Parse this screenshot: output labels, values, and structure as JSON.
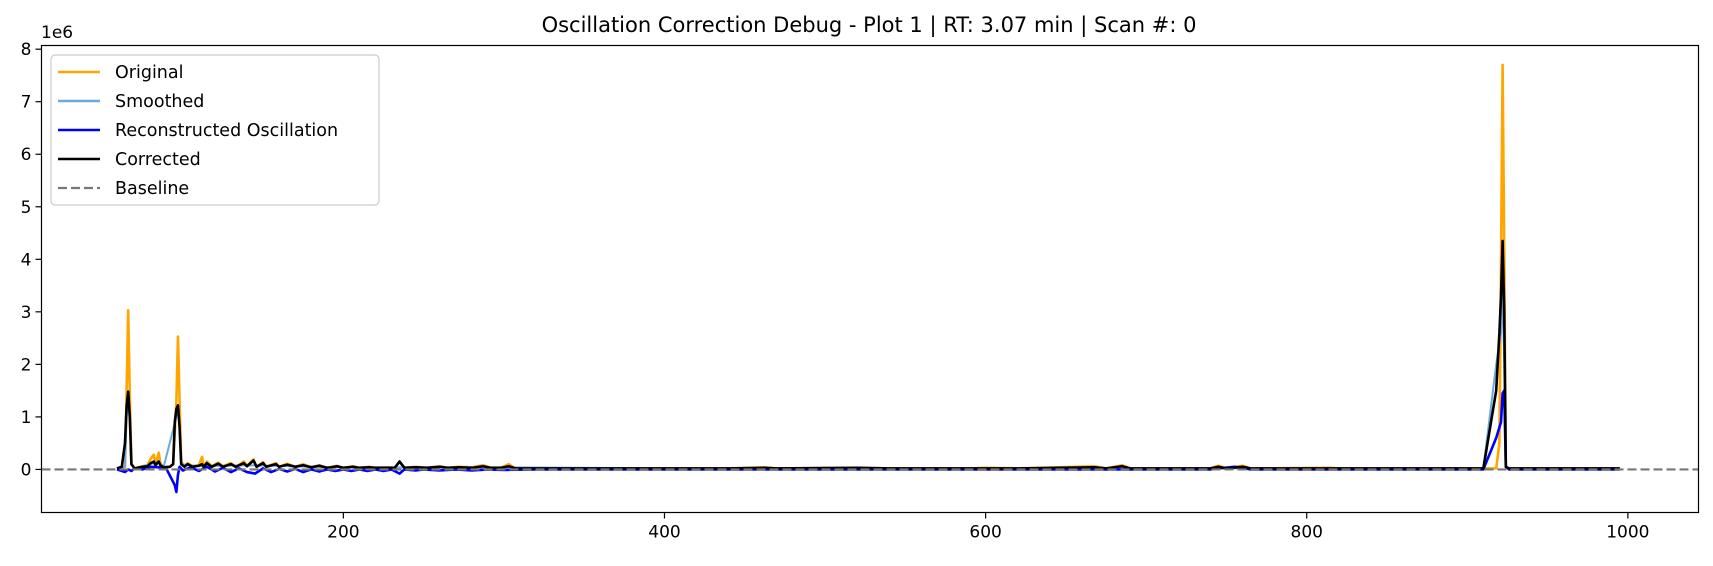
{
  "chart_data": {
    "type": "line",
    "title": "Oscillation Correction Debug - Plot 1 | RT: 3.07 min | Scan #: 0",
    "xlabel": "",
    "ylabel": "",
    "y_offset_label": "1e6",
    "xlim": [
      12,
      1044
    ],
    "ylim": [
      -0.82,
      8.07
    ],
    "x_ticks": [
      200,
      400,
      600,
      800,
      1000
    ],
    "x_tick_labels": [
      "200",
      "400",
      "600",
      "800",
      "1000"
    ],
    "y_ticks": [
      0,
      1,
      2,
      3,
      4,
      5,
      6,
      7,
      8
    ],
    "y_tick_labels": [
      "0",
      "1",
      "2",
      "3",
      "4",
      "5",
      "6",
      "7",
      "8"
    ],
    "grid": false,
    "legend_position": "top-left",
    "baseline": 0,
    "series": [
      {
        "name": "Original",
        "color": "#ffa500",
        "points": [
          [
            59,
            0.02
          ],
          [
            64,
            0.05
          ],
          [
            65,
            1.5
          ],
          [
            66,
            3.03
          ],
          [
            67,
            1.4
          ],
          [
            68,
            0.1
          ],
          [
            70,
            0.02
          ],
          [
            75,
            0.06
          ],
          [
            78,
            0.08
          ],
          [
            80,
            0.2
          ],
          [
            82,
            0.28
          ],
          [
            83,
            0.1
          ],
          [
            85,
            0.32
          ],
          [
            86,
            0.12
          ],
          [
            88,
            0.04
          ],
          [
            92,
            0.05
          ],
          [
            94,
            0.1
          ],
          [
            96,
            1.3
          ],
          [
            97,
            2.53
          ],
          [
            98,
            1.3
          ],
          [
            99,
            0.15
          ],
          [
            101,
            0.05
          ],
          [
            103,
            0.12
          ],
          [
            106,
            0.06
          ],
          [
            110,
            0.08
          ],
          [
            112,
            0.24
          ],
          [
            113,
            0.05
          ],
          [
            115,
            0.15
          ],
          [
            118,
            0.06
          ],
          [
            122,
            0.13
          ],
          [
            125,
            0.06
          ],
          [
            130,
            0.12
          ],
          [
            133,
            0.05
          ],
          [
            138,
            0.15
          ],
          [
            140,
            0.07
          ],
          [
            144,
            0.19
          ],
          [
            146,
            0.05
          ],
          [
            150,
            0.14
          ],
          [
            152,
            0.05
          ],
          [
            158,
            0.12
          ],
          [
            160,
            0.05
          ],
          [
            165,
            0.11
          ],
          [
            170,
            0.05
          ],
          [
            175,
            0.1
          ],
          [
            180,
            0.04
          ],
          [
            185,
            0.08
          ],
          [
            190,
            0.03
          ],
          [
            196,
            0.07
          ],
          [
            200,
            0.03
          ],
          [
            206,
            0.06
          ],
          [
            210,
            0.03
          ],
          [
            216,
            0.05
          ],
          [
            220,
            0.03
          ],
          [
            226,
            0.04
          ],
          [
            232,
            0.03
          ],
          [
            235,
            0.15
          ],
          [
            238,
            0.03
          ],
          [
            245,
            0.05
          ],
          [
            252,
            0.03
          ],
          [
            260,
            0.06
          ],
          [
            265,
            0.03
          ],
          [
            272,
            0.05
          ],
          [
            280,
            0.04
          ],
          [
            287,
            0.08
          ],
          [
            292,
            0.03
          ],
          [
            298,
            0.03
          ],
          [
            303,
            0.1
          ],
          [
            307,
            0.02
          ],
          [
            320,
            0.02
          ],
          [
            340,
            0.02
          ],
          [
            360,
            0.02
          ],
          [
            400,
            0.02
          ],
          [
            440,
            0.02
          ],
          [
            462,
            0.04
          ],
          [
            470,
            0.02
          ],
          [
            520,
            0.03
          ],
          [
            540,
            0.02
          ],
          [
            590,
            0.02
          ],
          [
            600,
            0.03
          ],
          [
            620,
            0.02
          ],
          [
            668,
            0.06
          ],
          [
            675,
            0.02
          ],
          [
            685,
            0.08
          ],
          [
            690,
            0.02
          ],
          [
            740,
            0.02
          ],
          [
            745,
            0.07
          ],
          [
            750,
            0.02
          ],
          [
            760,
            0.07
          ],
          [
            765,
            0.02
          ],
          [
            815,
            0.03
          ],
          [
            820,
            0.02
          ],
          [
            835,
            0.02
          ],
          [
            870,
            0.02
          ],
          [
            910,
            0.02
          ],
          [
            918,
            0.02
          ],
          [
            920,
            0.5
          ],
          [
            921,
            3.9
          ],
          [
            922,
            7.7
          ],
          [
            923,
            4.2
          ],
          [
            924,
            0.05
          ],
          [
            926,
            0.02
          ],
          [
            940,
            0.02
          ],
          [
            960,
            0.02
          ],
          [
            995,
            0.02
          ]
        ]
      },
      {
        "name": "Smoothed",
        "color": "#6fa8dc",
        "points": [
          [
            59,
            0.02
          ],
          [
            64,
            0.05
          ],
          [
            65,
            1.0
          ],
          [
            66,
            1.4
          ],
          [
            67,
            0.9
          ],
          [
            68,
            0.1
          ],
          [
            70,
            0.02
          ],
          [
            80,
            0.1
          ],
          [
            85,
            0.15
          ],
          [
            88,
            0.04
          ],
          [
            96,
            1.0
          ],
          [
            97,
            1.1
          ],
          [
            98,
            0.9
          ],
          [
            99,
            0.1
          ],
          [
            110,
            0.06
          ],
          [
            140,
            0.08
          ],
          [
            200,
            0.04
          ],
          [
            300,
            0.04
          ],
          [
            400,
            0.02
          ],
          [
            600,
            0.02
          ],
          [
            800,
            0.02
          ],
          [
            910,
            0.02
          ],
          [
            918,
            2.0
          ],
          [
            920,
            2.4
          ],
          [
            921,
            2.6
          ],
          [
            922,
            3.4
          ],
          [
            923,
            2.0
          ],
          [
            924,
            0.05
          ],
          [
            926,
            0.02
          ],
          [
            995,
            0.02
          ]
        ]
      },
      {
        "name": "Reconstructed Oscillation",
        "color": "#0000ff",
        "points": [
          [
            59,
            0.0
          ],
          [
            64,
            -0.05
          ],
          [
            66,
            0.0
          ],
          [
            68,
            -0.03
          ],
          [
            70,
            0.02
          ],
          [
            75,
            0.0
          ],
          [
            80,
            0.05
          ],
          [
            85,
            0.04
          ],
          [
            90,
            0.0
          ],
          [
            95,
            -0.3
          ],
          [
            96,
            -0.43
          ],
          [
            97,
            -0.1
          ],
          [
            98,
            0.05
          ],
          [
            100,
            -0.02
          ],
          [
            105,
            0.04
          ],
          [
            110,
            -0.03
          ],
          [
            115,
            0.05
          ],
          [
            120,
            -0.04
          ],
          [
            125,
            0.03
          ],
          [
            130,
            -0.05
          ],
          [
            135,
            0.02
          ],
          [
            140,
            -0.05
          ],
          [
            145,
            -0.08
          ],
          [
            150,
            0.02
          ],
          [
            155,
            -0.05
          ],
          [
            160,
            0.01
          ],
          [
            165,
            -0.04
          ],
          [
            170,
            0.01
          ],
          [
            175,
            -0.05
          ],
          [
            180,
            0.0
          ],
          [
            185,
            -0.04
          ],
          [
            190,
            0.0
          ],
          [
            195,
            -0.03
          ],
          [
            200,
            0.0
          ],
          [
            205,
            -0.03
          ],
          [
            210,
            0.0
          ],
          [
            215,
            -0.03
          ],
          [
            220,
            0.0
          ],
          [
            225,
            -0.03
          ],
          [
            230,
            0.0
          ],
          [
            235,
            -0.08
          ],
          [
            238,
            0.0
          ],
          [
            245,
            -0.02
          ],
          [
            250,
            0.0
          ],
          [
            260,
            -0.02
          ],
          [
            270,
            0.0
          ],
          [
            280,
            -0.02
          ],
          [
            290,
            0.0
          ],
          [
            300,
            -0.01
          ],
          [
            320,
            0.0
          ],
          [
            400,
            0.0
          ],
          [
            500,
            0.0
          ],
          [
            600,
            0.0
          ],
          [
            700,
            0.0
          ],
          [
            740,
            0.0
          ],
          [
            745,
            0.02
          ],
          [
            755,
            0.05
          ],
          [
            760,
            0.03
          ],
          [
            765,
            0.0
          ],
          [
            900,
            0.0
          ],
          [
            910,
            0.0
          ],
          [
            918,
            0.6
          ],
          [
            920,
            0.8
          ],
          [
            921,
            0.9
          ],
          [
            922,
            1.45
          ],
          [
            923,
            1.5
          ],
          [
            924,
            0.05
          ],
          [
            926,
            0.0
          ],
          [
            995,
            0.0
          ]
        ]
      },
      {
        "name": "Corrected",
        "color": "#000000",
        "points": [
          [
            59,
            0.02
          ],
          [
            62,
            0.05
          ],
          [
            64,
            0.5
          ],
          [
            65,
            1.2
          ],
          [
            66,
            1.48
          ],
          [
            67,
            1.0
          ],
          [
            68,
            0.1
          ],
          [
            70,
            0.02
          ],
          [
            75,
            0.05
          ],
          [
            78,
            0.06
          ],
          [
            80,
            0.12
          ],
          [
            82,
            0.15
          ],
          [
            83,
            0.08
          ],
          [
            85,
            0.15
          ],
          [
            86,
            0.08
          ],
          [
            88,
            0.04
          ],
          [
            92,
            0.05
          ],
          [
            94,
            0.1
          ],
          [
            95,
            0.9
          ],
          [
            96,
            1.15
          ],
          [
            97,
            1.22
          ],
          [
            98,
            0.8
          ],
          [
            99,
            0.1
          ],
          [
            101,
            0.05
          ],
          [
            103,
            0.1
          ],
          [
            106,
            0.05
          ],
          [
            110,
            0.07
          ],
          [
            112,
            0.1
          ],
          [
            113,
            0.05
          ],
          [
            115,
            0.12
          ],
          [
            118,
            0.05
          ],
          [
            122,
            0.11
          ],
          [
            125,
            0.05
          ],
          [
            130,
            0.1
          ],
          [
            133,
            0.05
          ],
          [
            138,
            0.12
          ],
          [
            140,
            0.06
          ],
          [
            144,
            0.17
          ],
          [
            146,
            0.05
          ],
          [
            150,
            0.12
          ],
          [
            152,
            0.05
          ],
          [
            158,
            0.1
          ],
          [
            160,
            0.05
          ],
          [
            165,
            0.09
          ],
          [
            170,
            0.05
          ],
          [
            175,
            0.08
          ],
          [
            180,
            0.04
          ],
          [
            185,
            0.07
          ],
          [
            190,
            0.03
          ],
          [
            196,
            0.06
          ],
          [
            200,
            0.03
          ],
          [
            206,
            0.05
          ],
          [
            210,
            0.03
          ],
          [
            216,
            0.04
          ],
          [
            220,
            0.03
          ],
          [
            226,
            0.03
          ],
          [
            232,
            0.03
          ],
          [
            235,
            0.15
          ],
          [
            238,
            0.03
          ],
          [
            245,
            0.04
          ],
          [
            252,
            0.03
          ],
          [
            260,
            0.05
          ],
          [
            265,
            0.03
          ],
          [
            272,
            0.04
          ],
          [
            280,
            0.03
          ],
          [
            287,
            0.06
          ],
          [
            292,
            0.03
          ],
          [
            298,
            0.03
          ],
          [
            303,
            0.06
          ],
          [
            307,
            0.02
          ],
          [
            320,
            0.02
          ],
          [
            360,
            0.02
          ],
          [
            400,
            0.02
          ],
          [
            440,
            0.02
          ],
          [
            462,
            0.03
          ],
          [
            470,
            0.02
          ],
          [
            520,
            0.03
          ],
          [
            540,
            0.02
          ],
          [
            600,
            0.02
          ],
          [
            620,
            0.02
          ],
          [
            668,
            0.04
          ],
          [
            675,
            0.02
          ],
          [
            685,
            0.06
          ],
          [
            690,
            0.02
          ],
          [
            740,
            0.02
          ],
          [
            745,
            0.05
          ],
          [
            750,
            0.02
          ],
          [
            760,
            0.05
          ],
          [
            765,
            0.02
          ],
          [
            815,
            0.02
          ],
          [
            835,
            0.02
          ],
          [
            870,
            0.02
          ],
          [
            910,
            0.02
          ],
          [
            918,
            1.5
          ],
          [
            920,
            2.6
          ],
          [
            921,
            3.3
          ],
          [
            922,
            4.35
          ],
          [
            923,
            3.0
          ],
          [
            924,
            0.05
          ],
          [
            926,
            0.02
          ],
          [
            940,
            0.02
          ],
          [
            960,
            0.02
          ],
          [
            995,
            0.02
          ]
        ]
      }
    ],
    "legend": [
      {
        "name": "Original",
        "color": "#ffa500",
        "style": "solid"
      },
      {
        "name": "Smoothed",
        "color": "#6fa8dc",
        "style": "solid"
      },
      {
        "name": "Reconstructed Oscillation",
        "color": "#0000ff",
        "style": "solid"
      },
      {
        "name": "Corrected",
        "color": "#000000",
        "style": "solid"
      },
      {
        "name": "Baseline",
        "color": "#777777",
        "style": "dashed"
      }
    ]
  }
}
